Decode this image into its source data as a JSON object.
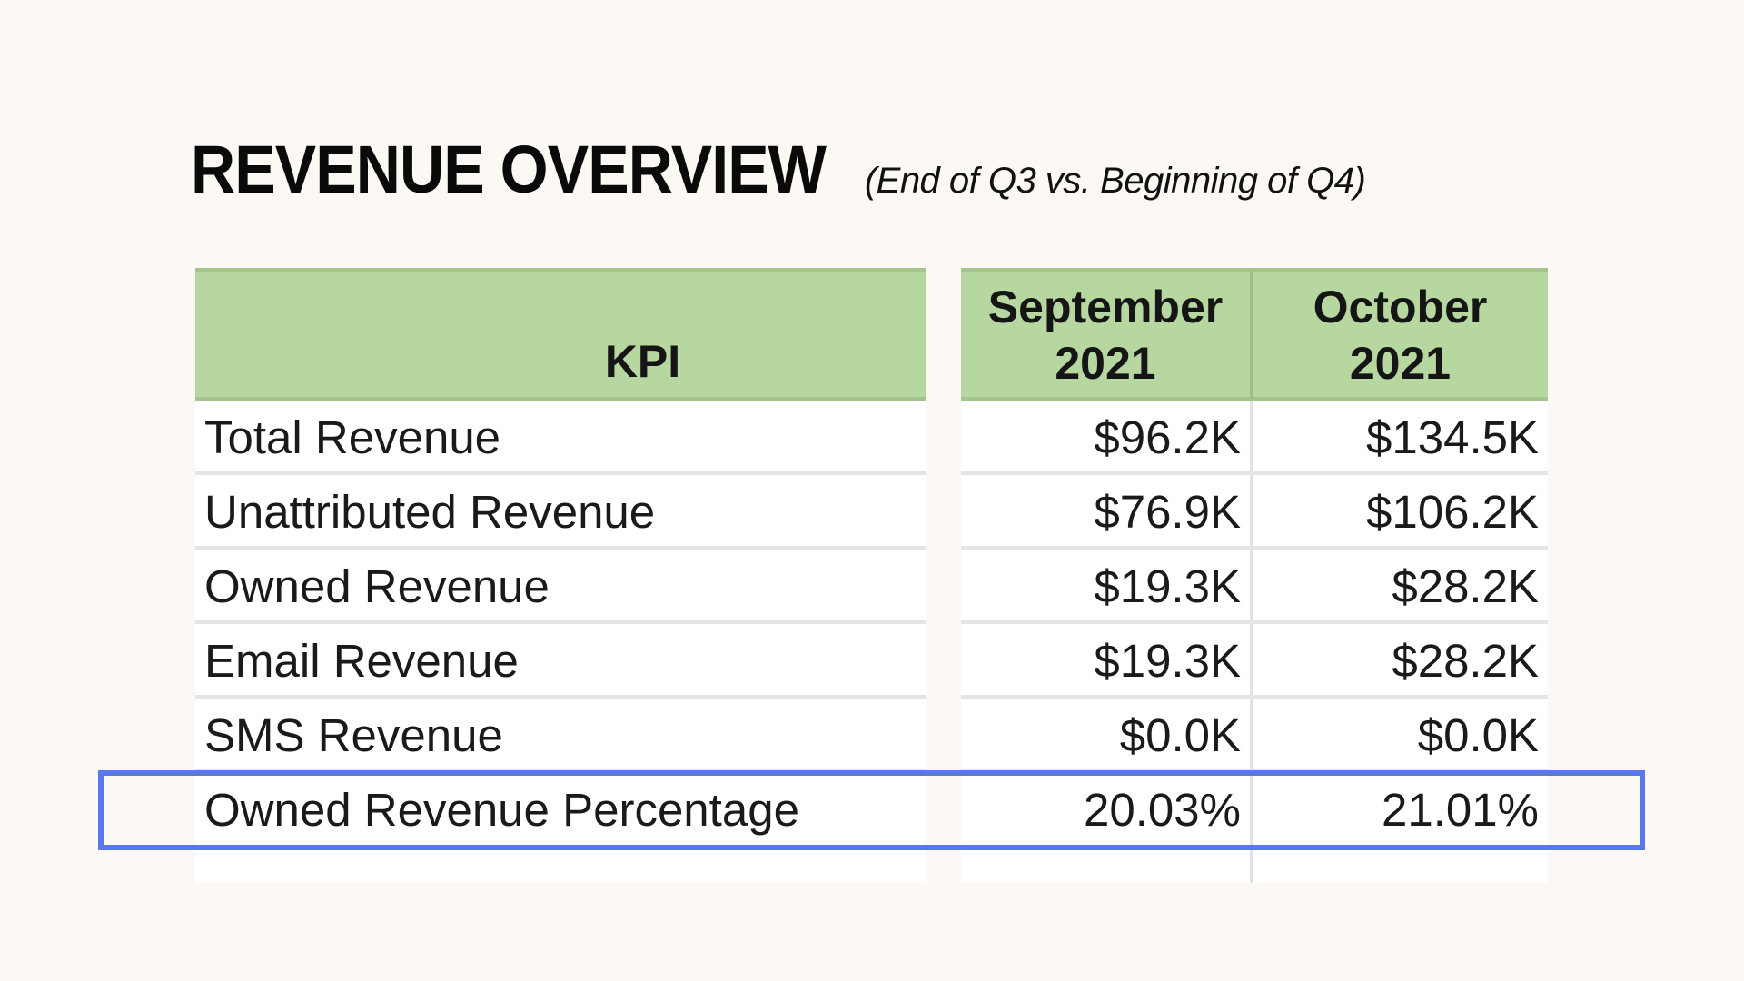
{
  "title": {
    "main": "REVENUE OVERVIEW",
    "sub": "(End of Q3 vs. Beginning of Q4)"
  },
  "table": {
    "headers": {
      "kpi": "KPI",
      "september_line1": "September",
      "september_line2": "2021",
      "october_line1": "October",
      "october_line2": "2021"
    },
    "rows": [
      {
        "label": "Total Revenue",
        "september": "$96.2K",
        "october": "$134.5K"
      },
      {
        "label": "Unattributed Revenue",
        "september": "$76.9K",
        "october": "$106.2K"
      },
      {
        "label": "Owned Revenue",
        "september": "$19.3K",
        "october": "$28.2K"
      },
      {
        "label": "Email Revenue",
        "september": "$19.3K",
        "october": "$28.2K"
      },
      {
        "label": "SMS Revenue",
        "september": "$0.0K",
        "october": "$0.0K"
      },
      {
        "label": "Owned Revenue Percentage",
        "september": "20.03%",
        "october": "21.01%"
      }
    ]
  },
  "colors": {
    "background": "#fcf9f4",
    "header_fill": "#b6d7a0",
    "highlight_border": "#5a78ee"
  }
}
